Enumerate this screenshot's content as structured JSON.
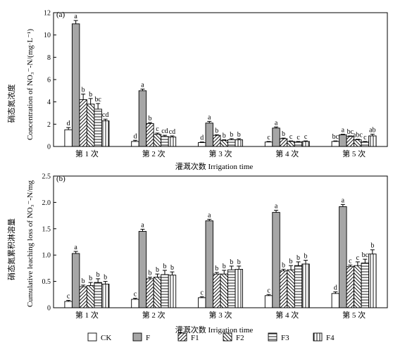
{
  "chart_data": [
    {
      "panel_label": "(a)",
      "type": "bar",
      "ylabel_cn": "硝态氮浓度",
      "ylabel_en": "Concentration of NO₃⁻-N/(mg·L⁻¹)",
      "xlabel": "灌溉次数 Irrigation time",
      "categories": [
        "第 1 次",
        "第 2 次",
        "第 3 次",
        "第 4 次",
        "第 5 次"
      ],
      "ylim": [
        0,
        12
      ],
      "yticks": [
        0,
        2,
        4,
        6,
        8,
        10,
        12
      ],
      "ytick_labels": [
        "0",
        "2",
        "4",
        "6",
        "8",
        "10",
        "12"
      ],
      "series": [
        {
          "name": "CK",
          "values": [
            1.5,
            0.45,
            0.35,
            0.4,
            0.45
          ],
          "errors": [
            0.2,
            0.1,
            0.05,
            0.05,
            0.05
          ],
          "labels": [
            "d",
            "d",
            "d",
            "c",
            "bc"
          ]
        },
        {
          "name": "F",
          "values": [
            11.0,
            5.0,
            2.1,
            1.65,
            1.05
          ],
          "errors": [
            0.3,
            0.15,
            0.15,
            0.1,
            0.05
          ],
          "labels": [
            "a",
            "a",
            "a",
            "a",
            "a"
          ]
        },
        {
          "name": "F1",
          "values": [
            4.2,
            2.05,
            1.0,
            0.7,
            0.9
          ],
          "errors": [
            0.5,
            0.1,
            0.05,
            0.05,
            0.05
          ],
          "labels": [
            "b",
            "b",
            "b",
            "b",
            "bc"
          ]
        },
        {
          "name": "F2",
          "values": [
            3.8,
            1.1,
            0.55,
            0.45,
            0.6
          ],
          "errors": [
            0.5,
            0.1,
            0.05,
            0.05,
            0.05
          ],
          "labels": [
            "b",
            "c",
            "b",
            "c",
            "abc"
          ]
        },
        {
          "name": "F3",
          "values": [
            3.35,
            0.9,
            0.6,
            0.4,
            0.4
          ],
          "errors": [
            0.5,
            0.1,
            0.1,
            0.05,
            0.05
          ],
          "labels": [
            "bc",
            "cd",
            "b",
            "c",
            "c"
          ]
        },
        {
          "name": "F4",
          "values": [
            2.3,
            0.85,
            0.6,
            0.45,
            0.95
          ],
          "errors": [
            0.15,
            0.1,
            0.1,
            0.05,
            0.15
          ],
          "labels": [
            "cd",
            "cd",
            "b",
            "c",
            "ab"
          ]
        }
      ]
    },
    {
      "panel_label": "(b)",
      "type": "bar",
      "ylabel_cn": "硝态氮累积淋溶量",
      "ylabel_en": "Cumulative leaching loss of NO₃⁻-N/mg",
      "xlabel": "灌溉次数 Irrigation time",
      "categories": [
        "第 1 次",
        "第 2 次",
        "第 3 次",
        "第 4 次",
        "第 5 次"
      ],
      "ylim": [
        0,
        2.5
      ],
      "yticks": [
        0,
        0.5,
        1.0,
        1.5,
        2.0,
        2.5
      ],
      "ytick_labels": [
        "0",
        "0.5",
        "1.0",
        "1.5",
        "2.0",
        "2.5"
      ],
      "series": [
        {
          "name": "CK",
          "values": [
            0.12,
            0.16,
            0.19,
            0.23,
            0.27
          ],
          "errors": [
            0.02,
            0.02,
            0.02,
            0.02,
            0.03
          ],
          "labels": [
            "c",
            "c",
            "c",
            "c",
            "d"
          ]
        },
        {
          "name": "F",
          "values": [
            1.03,
            1.45,
            1.65,
            1.81,
            1.92
          ],
          "errors": [
            0.04,
            0.04,
            0.03,
            0.04,
            0.04
          ],
          "labels": [
            "a",
            "a",
            "a",
            "a",
            "a"
          ]
        },
        {
          "name": "F1",
          "values": [
            0.4,
            0.55,
            0.64,
            0.7,
            0.78
          ],
          "errors": [
            0.03,
            0.03,
            0.03,
            0.03,
            0.03
          ],
          "labels": [
            "b",
            "b",
            "b",
            "b",
            "c"
          ]
        },
        {
          "name": "F2",
          "values": [
            0.42,
            0.58,
            0.64,
            0.72,
            0.8
          ],
          "errors": [
            0.06,
            0.06,
            0.07,
            0.08,
            0.07
          ],
          "labels": [
            "b",
            "b",
            "b",
            "b",
            "c"
          ]
        },
        {
          "name": "F3",
          "values": [
            0.48,
            0.63,
            0.72,
            0.8,
            0.85
          ],
          "errors": [
            0.07,
            0.08,
            0.07,
            0.07,
            0.07
          ],
          "labels": [
            "b",
            "b",
            "b",
            "b",
            "bc"
          ]
        },
        {
          "name": "F4",
          "values": [
            0.45,
            0.62,
            0.73,
            0.83,
            1.02
          ],
          "errors": [
            0.05,
            0.06,
            0.06,
            0.07,
            0.08
          ],
          "labels": [
            "b",
            "b",
            "b",
            "b",
            "b"
          ]
        }
      ]
    }
  ],
  "legend": {
    "placement": "bottom",
    "items": [
      {
        "name": "CK",
        "pattern": "white"
      },
      {
        "name": "F",
        "pattern": "gray"
      },
      {
        "name": "F1",
        "pattern": "diag-up"
      },
      {
        "name": "F2",
        "pattern": "diag-down"
      },
      {
        "name": "F3",
        "pattern": "horizontal"
      },
      {
        "name": "F4",
        "pattern": "vertical"
      }
    ]
  },
  "colors": {
    "gray_fill": "#a6a6a6",
    "stroke": "#000000",
    "background": "#ffffff"
  }
}
